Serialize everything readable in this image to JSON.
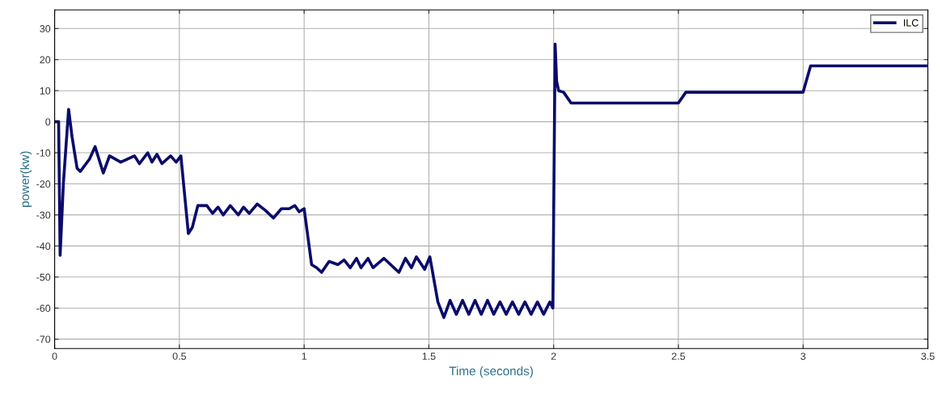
{
  "chart_data": {
    "type": "line",
    "xlabel": "Time (seconds)",
    "ylabel": "power(kw)",
    "xlim": [
      0,
      3.5
    ],
    "ylim": [
      -73,
      36
    ],
    "xticks": [
      0,
      0.5,
      1,
      1.5,
      2,
      2.5,
      3,
      3.5
    ],
    "yticks": [
      -70,
      -60,
      -50,
      -40,
      -30,
      -20,
      -10,
      0,
      10,
      20,
      30
    ],
    "grid": true,
    "legend": "top right",
    "line_style": "solid",
    "marker": "none",
    "series": [
      {
        "name": "ILC",
        "color": "#0b0b6b",
        "x": [
          0,
          0.016,
          0.022,
          0.035,
          0.056,
          0.07,
          0.09,
          0.103,
          0.14,
          0.162,
          0.195,
          0.22,
          0.265,
          0.32,
          0.34,
          0.373,
          0.39,
          0.41,
          0.43,
          0.465,
          0.487,
          0.506,
          0.536,
          0.552,
          0.574,
          0.61,
          0.633,
          0.655,
          0.676,
          0.704,
          0.736,
          0.757,
          0.78,
          0.812,
          0.844,
          0.877,
          0.909,
          0.94,
          0.963,
          0.98,
          1.0,
          1.03,
          1.05,
          1.07,
          1.1,
          1.136,
          1.16,
          1.185,
          1.21,
          1.228,
          1.256,
          1.276,
          1.32,
          1.38,
          1.406,
          1.43,
          1.45,
          1.483,
          1.504,
          1.536,
          1.56,
          1.585,
          1.61,
          1.635,
          1.66,
          1.685,
          1.71,
          1.735,
          1.76,
          1.785,
          1.81,
          1.835,
          1.86,
          1.885,
          1.91,
          1.935,
          1.96,
          1.985,
          1.997,
          2.006,
          2.012,
          2.02,
          2.04,
          2.07,
          2.5,
          2.53,
          3.0,
          3.03,
          3.5
        ],
        "values": [
          0,
          0,
          -43,
          -20,
          4,
          -5,
          -15,
          -16,
          -12,
          -8,
          -16.5,
          -11,
          -13,
          -11,
          -13.5,
          -10,
          -13,
          -10.5,
          -13.5,
          -11,
          -13,
          -11,
          -36,
          -34,
          -27,
          -27,
          -29.5,
          -27.5,
          -30,
          -27,
          -30,
          -27.5,
          -29.5,
          -26.5,
          -28.5,
          -31,
          -28,
          -28,
          -27,
          -29,
          -28,
          -46,
          -47,
          -48.5,
          -45,
          -46,
          -44.5,
          -47,
          -44,
          -47,
          -44,
          -47,
          -44,
          -48.5,
          -44,
          -47,
          -43.5,
          -47.5,
          -43.5,
          -58,
          -63,
          -57.5,
          -62,
          -57.5,
          -62,
          -57.5,
          -62,
          -57.5,
          -62,
          -58,
          -62,
          -58,
          -62,
          -58,
          -62,
          -58,
          -62,
          -58,
          -60,
          25,
          13,
          10,
          9.5,
          6,
          6,
          9.5,
          9.5,
          18,
          18
        ]
      }
    ]
  }
}
